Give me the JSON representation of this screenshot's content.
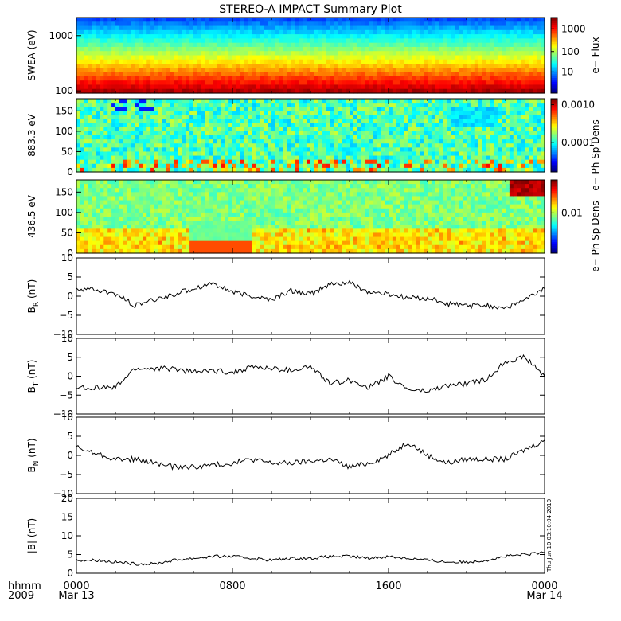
{
  "title": "STEREO-A IMPACT Summary Plot",
  "footer": {
    "hhmm_label": "hhmm",
    "year_label": "2009",
    "stamp": "Thu Jun 10 03:10:04 2010"
  },
  "chart_data": [
    {
      "type": "heatmap",
      "panel": "swea",
      "ylabel": "SWEA (eV)",
      "ylim": [
        100,
        2000
      ],
      "yscale": "log",
      "yticks": [
        "1000",
        "100"
      ],
      "colorbar": {
        "label": "e− Flux",
        "ticks": [
          "1000",
          "100",
          "10"
        ],
        "scale": "log"
      },
      "description_rows": [
        1.0,
        0.85,
        0.7,
        0.55,
        0.4,
        0.25,
        0.1,
        0.0
      ]
    },
    {
      "type": "heatmap",
      "panel": "pad883",
      "ylabel": "883.3 eV",
      "ylim": [
        0,
        180
      ],
      "yticks": [
        "150",
        "100",
        "50",
        "0"
      ],
      "colorbar": {
        "label": "e− Ph Sp Dens",
        "ticks": [
          "0.0010",
          "0.0001"
        ],
        "scale": "log"
      }
    },
    {
      "type": "heatmap",
      "panel": "pad436",
      "ylabel": "436.5 eV",
      "ylim": [
        0,
        180
      ],
      "yticks": [
        "150",
        "100",
        "50",
        "0"
      ],
      "colorbar": {
        "label": "e− Ph Sp Dens",
        "ticks": [
          "0.01"
        ],
        "scale": "log"
      }
    },
    {
      "type": "line",
      "panel": "br",
      "ylabel": "B",
      "ylabel_sub": "R",
      "ylabel_unit": " (nT)",
      "ylim": [
        -10,
        10
      ],
      "yticks": [
        "10",
        "5",
        "0",
        "−5",
        "−10"
      ],
      "x": [
        0,
        1,
        2,
        3,
        4,
        5,
        6,
        7,
        8,
        9,
        10,
        11,
        12,
        13,
        14,
        15,
        16,
        17,
        18,
        19,
        20,
        21,
        22,
        23,
        24
      ],
      "y": [
        2.0,
        1.5,
        0.5,
        -2.5,
        -1.0,
        0.5,
        2.0,
        3.5,
        1.0,
        0.0,
        -1.0,
        1.5,
        0.5,
        3.0,
        3.5,
        1.0,
        0.5,
        -0.5,
        -0.5,
        -2.0,
        -2.5,
        -2.5,
        -3.0,
        -1.0,
        2.0
      ]
    },
    {
      "type": "line",
      "panel": "bt",
      "ylabel": "B",
      "ylabel_sub": "T",
      "ylabel_unit": " (nT)",
      "ylim": [
        -10,
        10
      ],
      "yticks": [
        "10",
        "5",
        "0",
        "−5",
        "−10"
      ],
      "x": [
        0,
        1,
        2,
        3,
        4,
        5,
        6,
        7,
        8,
        9,
        10,
        11,
        12,
        13,
        14,
        15,
        16,
        17,
        18,
        19,
        20,
        21,
        22,
        23,
        24
      ],
      "y": [
        -3.0,
        -3.0,
        -3.0,
        2.0,
        2.0,
        2.0,
        1.0,
        1.5,
        1.0,
        2.5,
        2.0,
        1.5,
        2.5,
        -2.0,
        -1.0,
        -3.0,
        0.0,
        -3.5,
        -4.0,
        -2.5,
        -2.0,
        -1.0,
        4.0,
        5.0,
        0.0
      ]
    },
    {
      "type": "line",
      "panel": "bn",
      "ylabel": "B",
      "ylabel_sub": "N",
      "ylabel_unit": " (nT)",
      "ylim": [
        -10,
        10
      ],
      "yticks": [
        "10",
        "5",
        "0",
        "−5",
        "−10"
      ],
      "x": [
        0,
        1,
        2,
        3,
        4,
        5,
        6,
        7,
        8,
        9,
        10,
        11,
        12,
        13,
        14,
        15,
        16,
        17,
        18,
        19,
        20,
        21,
        22,
        23,
        24
      ],
      "y": [
        2.0,
        0.5,
        -1.0,
        -1.0,
        -2.0,
        -3.0,
        -3.0,
        -2.5,
        -2.0,
        -1.0,
        -2.0,
        -2.0,
        -1.5,
        -1.0,
        -3.0,
        -2.0,
        0.0,
        3.5,
        0.0,
        -2.0,
        -1.0,
        -1.0,
        -1.0,
        1.5,
        4.0
      ]
    },
    {
      "type": "line",
      "panel": "bmag",
      "ylabel": "|B| (nT)",
      "ylim": [
        0,
        20
      ],
      "yticks": [
        "20",
        "15",
        "10",
        "5",
        "0"
      ],
      "x": [
        0,
        1,
        2,
        3,
        4,
        5,
        6,
        7,
        8,
        9,
        10,
        11,
        12,
        13,
        14,
        15,
        16,
        17,
        18,
        19,
        20,
        21,
        22,
        23,
        24
      ],
      "y": [
        3.5,
        3.5,
        3.0,
        2.5,
        2.5,
        3.5,
        4.0,
        4.5,
        4.5,
        4.0,
        3.5,
        4.0,
        4.0,
        4.5,
        4.5,
        4.0,
        4.5,
        4.0,
        3.5,
        3.0,
        3.0,
        3.5,
        4.5,
        5.0,
        5.5
      ]
    }
  ],
  "xaxis": {
    "ticks": [
      "0000",
      "0800",
      "1600",
      "0000"
    ],
    "dates": [
      "Mar 13",
      "Mar 14"
    ],
    "xlim": [
      0,
      24
    ]
  }
}
